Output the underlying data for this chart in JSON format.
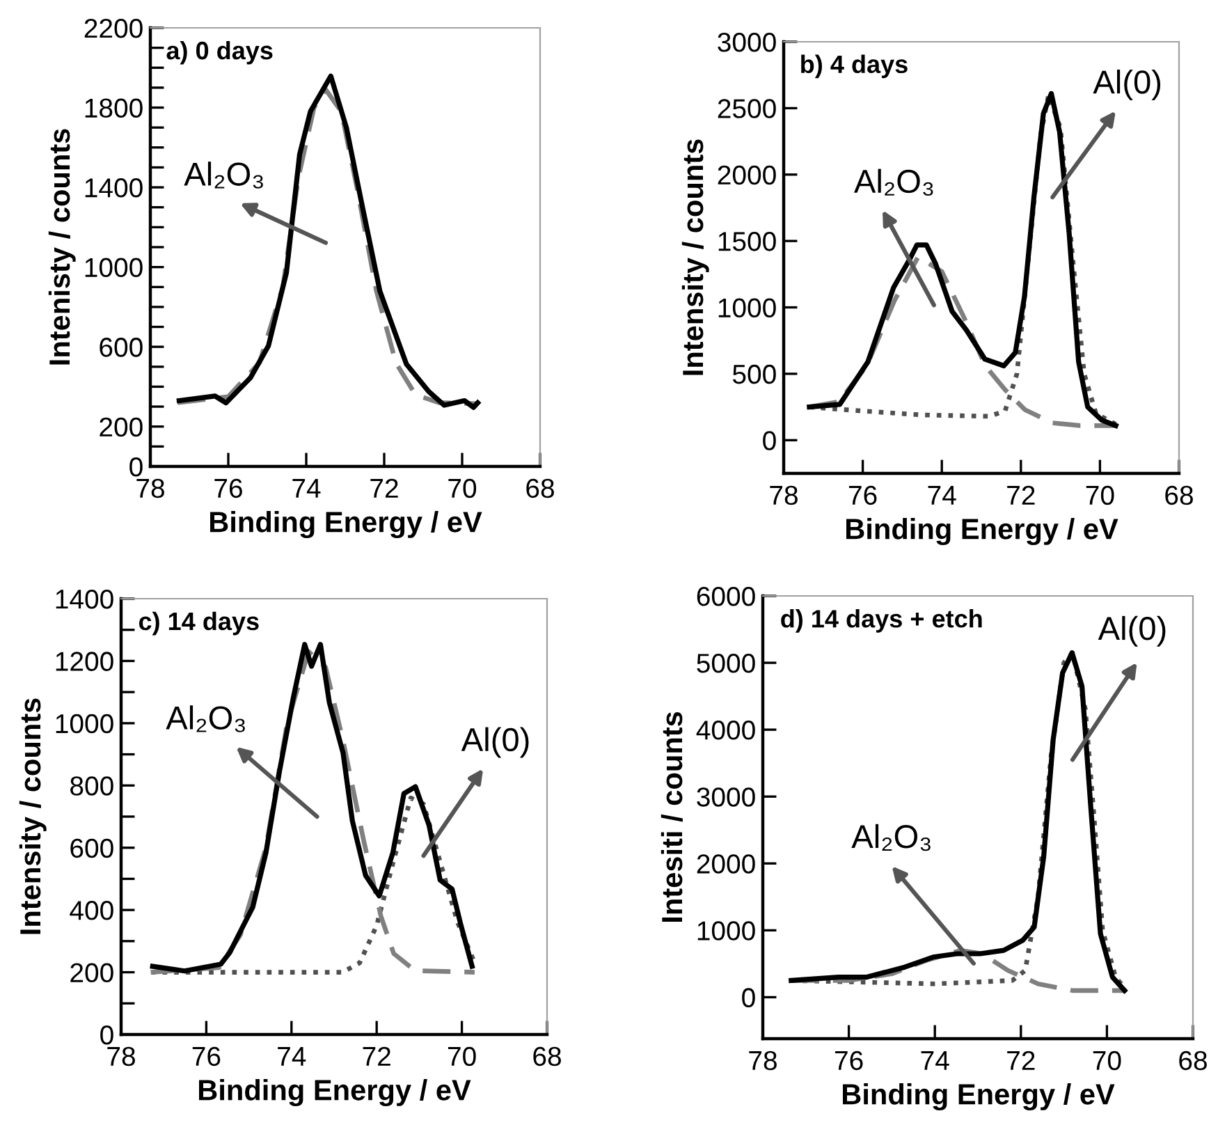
{
  "chart_data": [
    {
      "type": "line",
      "title": "a) 0 days",
      "xlabel": "Binding Energy / eV",
      "ylabel": "Intenisty / counts",
      "xlim": [
        78,
        68
      ],
      "ylim": [
        0,
        2200
      ],
      "xticks": [
        78,
        76,
        74,
        72,
        70,
        68
      ],
      "yticks": [
        0,
        {
          "value": 100,
          "label": null
        },
        200,
        {
          "value": 300,
          "label": null
        },
        {
          "value": 400,
          "label": null
        },
        {
          "value": 500,
          "label": null
        },
        600,
        {
          "value": 700,
          "label": null
        },
        {
          "value": 800,
          "label": null
        },
        {
          "value": 900,
          "label": null
        },
        1000,
        {
          "value": 1100,
          "label": null
        },
        {
          "value": 1200,
          "label": null
        },
        {
          "value": 1300,
          "label": null
        },
        1400,
        {
          "value": 1500,
          "label": null
        },
        {
          "value": 1600,
          "label": null
        },
        {
          "value": 1700,
          "label": null
        },
        1800,
        {
          "value": 1900,
          "label": null
        },
        {
          "value": 2000,
          "label": null
        },
        {
          "value": 2100,
          "label": null
        },
        2200
      ],
      "grid": false,
      "marker": "none",
      "annotations": [
        "Al₂O₃"
      ],
      "series": [
        {
          "color": "#000000",
          "line_style": "solid",
          "x": [
            77.26,
            76.34,
            76.06,
            75.43,
            74.97,
            74.51,
            74.17,
            73.89,
            73.37,
            72.97,
            72.57,
            72.11,
            71.43,
            70.86,
            70.46,
            69.94,
            69.71,
            69.6
          ],
          "values": [
            330,
            353,
            319,
            445,
            605,
            970,
            1565,
            1782,
            1958,
            1700,
            1313,
            879,
            513,
            376,
            307,
            330,
            296,
            319
          ]
        },
        {
          "color": "#808080",
          "line_style": "dashed",
          "x": [
            77.3,
            76.0,
            75.2,
            74.6,
            74.2,
            73.8,
            73.5,
            73.1,
            72.7,
            72.2,
            71.7,
            71.2,
            70.6,
            69.6
          ],
          "values": [
            320,
            350,
            520,
            900,
            1450,
            1800,
            1890,
            1780,
            1400,
            880,
            520,
            360,
            320,
            315
          ]
        }
      ]
    },
    {
      "type": "line",
      "title": "b) 4 days",
      "xlabel": "Binding Energy / eV",
      "ylabel": "Intensity / counts",
      "xlim": [
        78,
        68
      ],
      "ylim": [
        -250,
        3000
      ],
      "xticks": [
        78,
        76,
        74,
        72,
        70,
        68
      ],
      "yticks": [
        0,
        500,
        1000,
        1500,
        2000,
        2500,
        3000
      ],
      "grid": false,
      "marker": "none",
      "annotations": [
        "Al₂O₃",
        "Al(0)"
      ],
      "series": [
        {
          "color": "#000000",
          "line_style": "solid",
          "x": [
            77.35,
            76.58,
            75.87,
            75.22,
            74.8,
            74.63,
            74.39,
            74.16,
            73.74,
            73.38,
            72.91,
            72.43,
            72.14,
            71.91,
            71.67,
            71.43,
            71.23,
            71.02,
            70.78,
            70.54,
            70.31,
            69.95,
            69.6
          ],
          "values": [
            250,
            270,
            590,
            1150,
            1370,
            1470,
            1470,
            1330,
            970,
            830,
            610,
            560,
            660,
            1080,
            1830,
            2460,
            2610,
            2320,
            1560,
            590,
            250,
            150,
            110
          ]
        },
        {
          "color": "#808080",
          "line_style": "dashed",
          "x": [
            77.35,
            76.6,
            75.9,
            75.2,
            74.6,
            74.0,
            73.4,
            72.9,
            72.4,
            71.9,
            71.2,
            70.5,
            69.6
          ],
          "values": [
            250,
            290,
            560,
            1050,
            1380,
            1270,
            900,
            560,
            380,
            230,
            130,
            110,
            110
          ]
        },
        {
          "color": "#505050",
          "line_style": "dotted",
          "x": [
            77.35,
            76.0,
            74.5,
            72.8,
            72.4,
            72.1,
            71.8,
            71.5,
            71.3,
            71.0,
            70.7,
            70.4,
            70.1,
            69.6
          ],
          "values": [
            250,
            220,
            190,
            180,
            220,
            500,
            1400,
            2300,
            2600,
            2350,
            1400,
            500,
            200,
            120
          ]
        }
      ]
    },
    {
      "type": "line",
      "title": "c) 14 days",
      "xlabel": "Binding Energy / eV",
      "ylabel": "Intensity / counts",
      "xlim": [
        78,
        68
      ],
      "ylim": [
        0,
        1400
      ],
      "xticks": [
        78,
        76,
        74,
        72,
        70,
        68
      ],
      "yticks": [
        0,
        {
          "value": 100,
          "label": null
        },
        200,
        {
          "value": 300,
          "label": null
        },
        400,
        {
          "value": 500,
          "label": null
        },
        600,
        {
          "value": 700,
          "label": null
        },
        800,
        {
          "value": 900,
          "label": null
        },
        1000,
        {
          "value": 1100,
          "label": null
        },
        1200,
        {
          "value": 1300,
          "label": null
        },
        1400
      ],
      "grid": false,
      "marker": "none",
      "annotations": [
        "Al₂O₃",
        "Al(0)"
      ],
      "series": [
        {
          "color": "#000000",
          "line_style": "solid",
          "x": [
            77.26,
            76.51,
            75.66,
            75.45,
            75.13,
            74.91,
            74.6,
            74.28,
            73.96,
            73.69,
            73.53,
            73.32,
            73.11,
            72.79,
            72.57,
            72.26,
            71.94,
            71.62,
            71.36,
            71.09,
            70.77,
            70.51,
            70.23,
            70.02,
            69.76
          ],
          "values": [
            219,
            204,
            226,
            263,
            350,
            409,
            584,
            847,
            1080,
            1253,
            1183,
            1253,
            1066,
            905,
            686,
            511,
            445,
            584,
            774,
            796,
            672,
            496,
            467,
            350,
            219
          ]
        },
        {
          "color": "#808080",
          "line_style": "dashed",
          "x": [
            77.3,
            75.7,
            75.2,
            74.6,
            74.1,
            73.6,
            73.2,
            72.8,
            72.3,
            71.9,
            71.6,
            71.1,
            69.7
          ],
          "values": [
            200,
            215,
            320,
            600,
            1000,
            1230,
            1180,
            950,
            620,
            380,
            260,
            205,
            200
          ]
        },
        {
          "color": "#505050",
          "line_style": "dotted",
          "x": [
            77.3,
            72.8,
            72.4,
            72.0,
            71.6,
            71.2,
            70.9,
            70.5,
            70.1,
            69.7
          ],
          "values": [
            200,
            200,
            230,
            350,
            560,
            760,
            740,
            550,
            360,
            230
          ]
        }
      ]
    },
    {
      "type": "line",
      "title": "d) 14 days + etch",
      "xlabel": "Binding Energy / eV",
      "ylabel": "Intesiti / counts",
      "xlim": [
        78,
        68
      ],
      "ylim": [
        -620,
        6000
      ],
      "xticks": [
        78,
        76,
        74,
        72,
        70,
        68
      ],
      "yticks": [
        0,
        1000,
        2000,
        3000,
        4000,
        5000,
        6000
      ],
      "grid": false,
      "marker": "none",
      "annotations": [
        "Al₂O₃",
        "Al(0)"
      ],
      "series": [
        {
          "color": "#000000",
          "line_style": "solid",
          "x": [
            77.34,
            76.24,
            75.58,
            74.7,
            74.04,
            73.49,
            72.95,
            72.4,
            71.96,
            71.69,
            71.47,
            71.25,
            71.03,
            70.81,
            70.58,
            70.37,
            70.15,
            69.87,
            69.59
          ],
          "values": [
            250,
            300,
            300,
            450,
            600,
            650,
            650,
            700,
            850,
            1050,
            2100,
            3850,
            4850,
            5150,
            4650,
            2800,
            950,
            300,
            100
          ]
        },
        {
          "color": "#808080",
          "line_style": "dashed",
          "x": [
            77.34,
            76.0,
            75.0,
            74.2,
            73.4,
            72.9,
            72.3,
            71.6,
            70.8,
            70.0,
            69.6
          ],
          "values": [
            250,
            250,
            350,
            550,
            700,
            650,
            400,
            200,
            100,
            100,
            100
          ]
        },
        {
          "color": "#505050",
          "line_style": "dotted",
          "x": [
            77.34,
            74.0,
            72.2,
            71.9,
            71.6,
            71.3,
            71.0,
            70.8,
            70.5,
            70.3,
            70.1,
            69.8,
            69.6
          ],
          "values": [
            250,
            200,
            250,
            400,
            1500,
            3600,
            5000,
            5150,
            4300,
            2700,
            1000,
            300,
            150
          ]
        }
      ]
    }
  ]
}
